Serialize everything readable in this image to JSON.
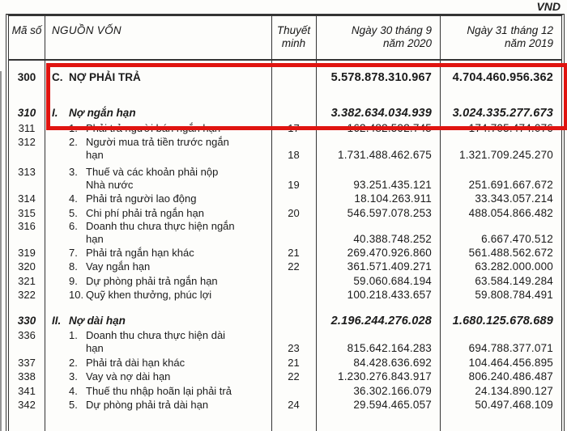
{
  "page": {
    "currency_label": "VND"
  },
  "table": {
    "header": {
      "code": "Mã số",
      "name": "NGUỒN VỐN",
      "note": "Thuyết minh",
      "period1": "Ngày 30 tháng 9\nnăm 2020",
      "period2": "Ngày 31 tháng 12\nnăm 2019"
    },
    "highlight": {
      "color": "#e01410",
      "rows_covered": [
        "300",
        "310"
      ]
    },
    "rows": [
      {
        "code": "300",
        "type": "grand",
        "prefix": "C.",
        "name": "NỢ PHẢI TRẢ",
        "note": "",
        "v2020": "5.578.878.310.967",
        "v2019": "4.704.460.956.362",
        "highlight": true
      },
      {
        "code": "310",
        "type": "sub",
        "prefix": "I.",
        "name": "Nợ ngắn hạn",
        "note": "",
        "v2020": "3.382.634.034.939",
        "v2019": "3.024.335.277.673",
        "highlight": true
      },
      {
        "code": "311",
        "type": "item",
        "prefix": "1.",
        "name": "Phải trả người bán ngắn hạn",
        "note": "17",
        "v2020": "162.482.592.745",
        "v2019": "174.705.474.076",
        "highlight": false
      },
      {
        "code": "312",
        "type": "item",
        "prefix": "2.",
        "name": "Người mua trả tiền trước ngắn\nhạn",
        "note": "18",
        "v2020": "1.731.488.462.675",
        "v2019": "1.321.709.245.270",
        "highlight": false
      },
      {
        "code": "313",
        "type": "item",
        "prefix": "3.",
        "name": "Thuế và các khoản phải nộp\nNhà nước",
        "note": "19",
        "v2020": "93.251.435.121",
        "v2019": "251.691.667.672",
        "highlight": false
      },
      {
        "code": "314",
        "type": "item",
        "prefix": "4.",
        "name": "Phải trả người lao động",
        "note": "",
        "v2020": "18.104.263.911",
        "v2019": "33.343.057.214",
        "highlight": false
      },
      {
        "code": "315",
        "type": "item",
        "prefix": "5.",
        "name": "Chi phí phải trả ngắn hạn",
        "note": "20",
        "v2020": "546.597.078.253",
        "v2019": "488.054.866.482",
        "highlight": false
      },
      {
        "code": "316",
        "type": "item",
        "prefix": "6.",
        "name": "Doanh thu chưa thực hiện ngắn\nhạn",
        "note": "",
        "v2020": "40.388.748.252",
        "v2019": "6.667.470.512",
        "highlight": false
      },
      {
        "code": "319",
        "type": "item",
        "prefix": "7.",
        "name": "Phải trả ngắn hạn khác",
        "note": "21",
        "v2020": "269.470.926.860",
        "v2019": "561.488.562.672",
        "highlight": false
      },
      {
        "code": "320",
        "type": "item",
        "prefix": "8.",
        "name": "Vay ngắn hạn",
        "note": "22",
        "v2020": "361.571.409.271",
        "v2019": "63.282.000.000",
        "highlight": false
      },
      {
        "code": "321",
        "type": "item",
        "prefix": "9.",
        "name": "Dự phòng phải trả ngắn hạn",
        "note": "",
        "v2020": "59.060.684.194",
        "v2019": "63.584.149.284",
        "highlight": false
      },
      {
        "code": "322",
        "type": "item",
        "prefix": "10.",
        "name": "Quỹ khen thưởng, phúc lợi",
        "note": "",
        "v2020": "100.218.433.657",
        "v2019": "59.808.784.491",
        "highlight": false
      },
      {
        "code": "330",
        "type": "sub",
        "prefix": "II.",
        "name": "Nợ dài hạn",
        "note": "",
        "v2020": "2.196.244.276.028",
        "v2019": "1.680.125.678.689",
        "highlight": false
      },
      {
        "code": "336",
        "type": "item",
        "prefix": "1.",
        "name": "Doanh thu chưa thực hiện dài\nhạn",
        "note": "23",
        "v2020": "815.642.164.283",
        "v2019": "694.788.377.071",
        "highlight": false
      },
      {
        "code": "337",
        "type": "item",
        "prefix": "2.",
        "name": "Phải trả dài hạn khác",
        "note": "21",
        "v2020": "84.428.636.692",
        "v2019": "104.464.456.895",
        "highlight": false
      },
      {
        "code": "338",
        "type": "item",
        "prefix": "3.",
        "name": "Vay và nợ dài hạn",
        "note": "22",
        "v2020": "1.230.276.843.917",
        "v2019": "806.240.486.487",
        "highlight": false
      },
      {
        "code": "341",
        "type": "item",
        "prefix": "4.",
        "name": "Thuế thu nhập hoãn lại phải trả",
        "note": "",
        "v2020": "36.302.166.079",
        "v2019": "24.134.890.127",
        "highlight": false
      },
      {
        "code": "342",
        "type": "item",
        "prefix": "5.",
        "name": "Dự phòng phải trả dài hạn",
        "note": "24",
        "v2020": "29.594.465.057",
        "v2019": "50.497.468.109",
        "highlight": false
      }
    ]
  }
}
